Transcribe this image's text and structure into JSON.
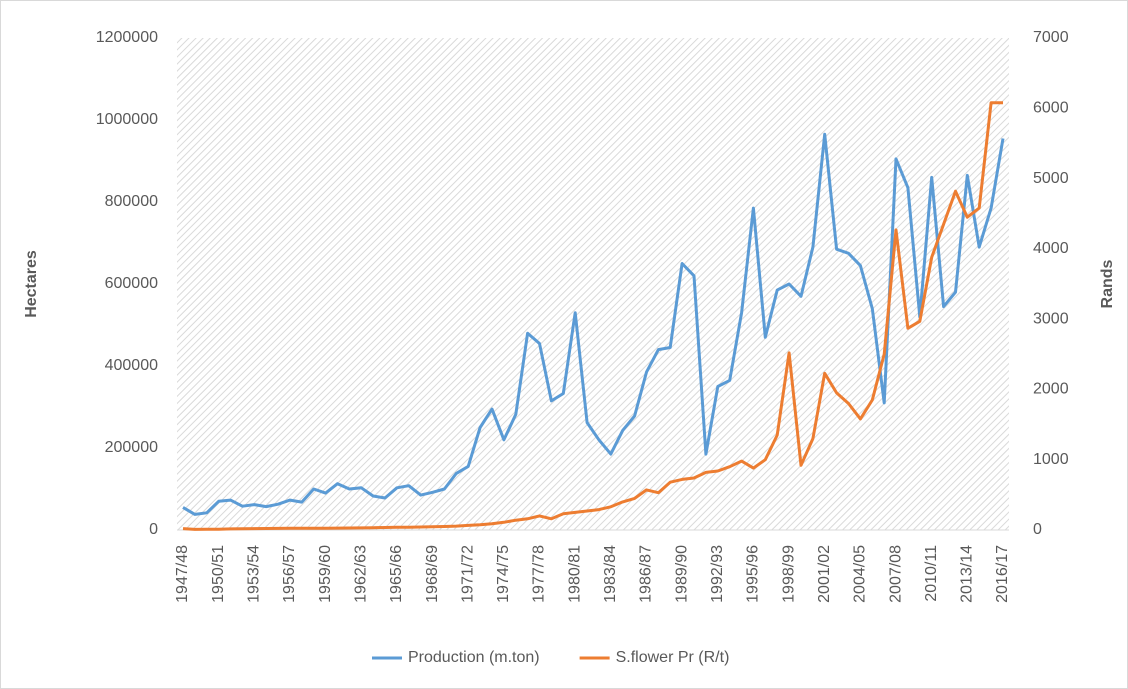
{
  "chart_data": {
    "type": "line",
    "y_label": "Hectares",
    "y2_label": "Rands",
    "categories": [
      "1947/48",
      null,
      null,
      "1950/51",
      null,
      null,
      "1953/54",
      null,
      null,
      "1956/57",
      null,
      null,
      "1959/60",
      null,
      null,
      "1962/63",
      null,
      null,
      "1965/66",
      null,
      null,
      "1968/69",
      null,
      null,
      "1971/72",
      null,
      null,
      "1974/75",
      null,
      null,
      "1977/78",
      null,
      null,
      "1980/81",
      null,
      null,
      "1983/84",
      null,
      null,
      "1986/87",
      null,
      null,
      "1989/90",
      null,
      null,
      "1992/93",
      null,
      null,
      "1995/96",
      null,
      null,
      "1998/99",
      null,
      null,
      "2001/02",
      null,
      null,
      "2004/05",
      null,
      null,
      "2007/08",
      null,
      null,
      "2010/11",
      null,
      null,
      "2013/14",
      null,
      null,
      "2016/17"
    ],
    "series": [
      {
        "name": "Production (m.ton)",
        "color": "#5b9bd5",
        "axis": "y",
        "values": [
          55000,
          38000,
          42000,
          70000,
          73000,
          58000,
          62000,
          57000,
          63000,
          73000,
          68000,
          100000,
          90000,
          113000,
          100000,
          103000,
          83000,
          78000,
          103000,
          108000,
          85000,
          92000,
          100000,
          138000,
          155000,
          250000,
          295000,
          220000,
          282000,
          480000,
          455000,
          315000,
          333000,
          530000,
          262000,
          220000,
          185000,
          243000,
          278000,
          385000,
          440000,
          445000,
          650000,
          620000,
          185000,
          350000,
          365000,
          530000,
          785000,
          470000,
          585000,
          600000,
          570000,
          690000,
          965000,
          685000,
          675000,
          645000,
          540000,
          310000,
          905000,
          835000,
          520000,
          860000,
          545000,
          580000,
          865000,
          690000,
          785000,
          955000
        ]
      },
      {
        "name": "S.flower Pr (R/t)",
        "color": "#ed7d31",
        "axis": "y2",
        "values": [
          20,
          8,
          10,
          12,
          15,
          18,
          20,
          22,
          23,
          24,
          25,
          26,
          26,
          27,
          28,
          30,
          33,
          35,
          38,
          40,
          42,
          45,
          50,
          55,
          65,
          75,
          90,
          110,
          140,
          160,
          200,
          160,
          230,
          250,
          270,
          290,
          330,
          400,
          450,
          570,
          530,
          680,
          720,
          740,
          820,
          840,
          900,
          980,
          880,
          1000,
          1350,
          2520,
          920,
          1300,
          2230,
          1950,
          1800,
          1580,
          1850,
          2500,
          4270,
          2870,
          2970,
          3880,
          4350,
          4820,
          4450,
          4580,
          6080,
          6080
        ]
      }
    ],
    "ylim": [
      0,
      1200000
    ],
    "yticks": [
      0,
      200000,
      400000,
      600000,
      800000,
      1000000,
      1200000
    ],
    "y2lim": [
      0,
      7000
    ],
    "y2ticks": [
      0,
      1000,
      2000,
      3000,
      4000,
      5000,
      6000,
      7000
    ],
    "legend": "bottom"
  }
}
